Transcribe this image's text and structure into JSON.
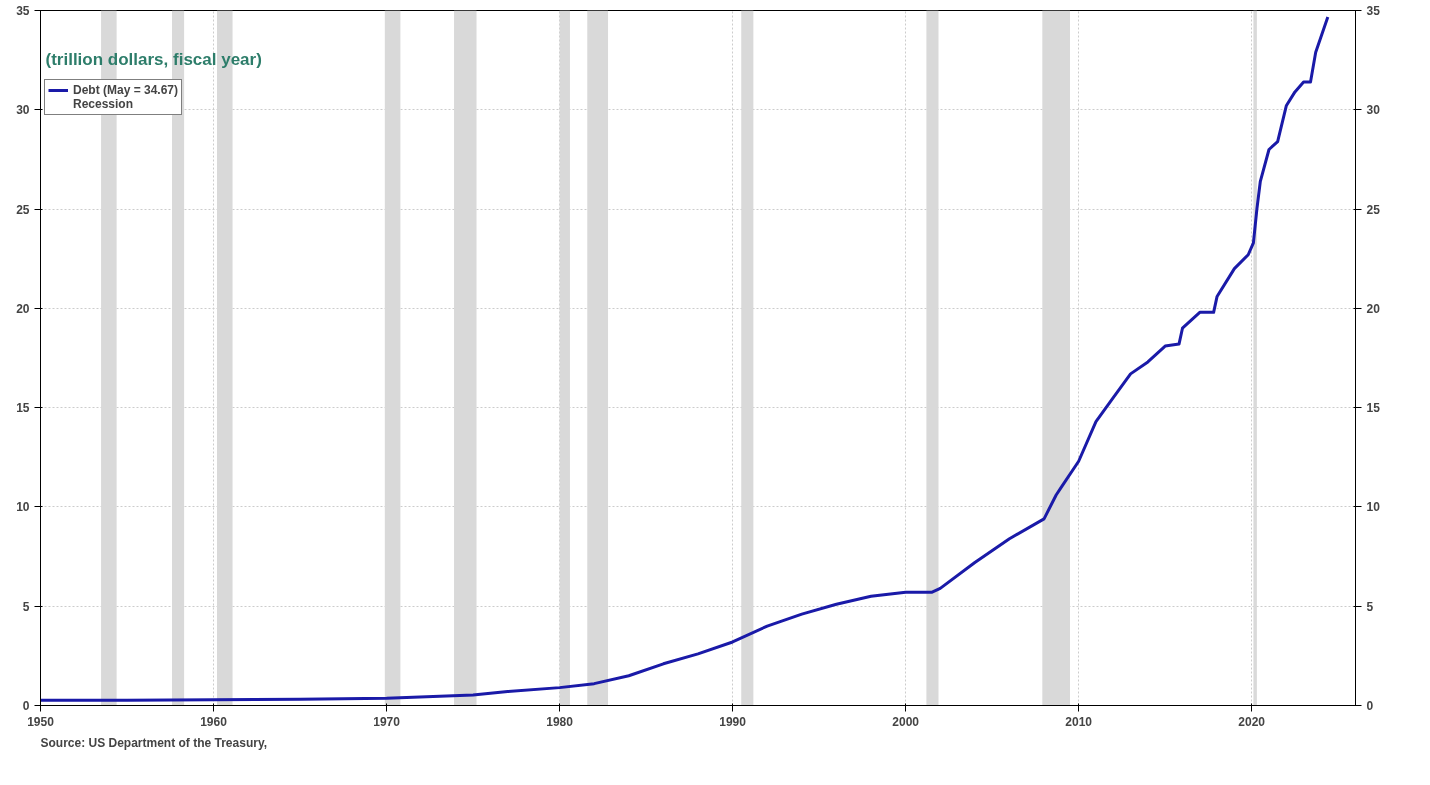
{
  "chart_data": {
    "type": "line",
    "title": "(trillion dollars, fiscal year)",
    "x": [
      1950,
      1955,
      1960,
      1965,
      1970,
      1975,
      1977,
      1980,
      1982,
      1984,
      1986,
      1988,
      1990,
      1992,
      1994,
      1996,
      1998,
      2000,
      2001.5,
      2002,
      2004,
      2006,
      2008,
      2008.7,
      2009,
      2010,
      2011,
      2012,
      2013,
      2014,
      2015,
      2015.8,
      2016,
      2017,
      2017.8,
      2018,
      2019,
      2019.8,
      2020.1,
      2020.3,
      2020.5,
      2021,
      2021.5,
      2022,
      2022.5,
      2023,
      2023.4,
      2023.7,
      2024.4
    ],
    "series": [
      {
        "name": "Debt (May = 34.67)",
        "color": "#1a1aa8",
        "values": [
          0.26,
          0.27,
          0.29,
          0.32,
          0.37,
          0.53,
          0.7,
          0.9,
          1.1,
          1.5,
          2.1,
          2.6,
          3.2,
          4.0,
          4.6,
          5.1,
          5.5,
          5.7,
          5.7,
          5.9,
          7.2,
          8.4,
          9.4,
          10.6,
          11.0,
          12.3,
          14.3,
          15.5,
          16.7,
          17.3,
          18.1,
          18.2,
          19.0,
          19.8,
          19.8,
          20.6,
          22.0,
          22.7,
          23.3,
          25.0,
          26.4,
          28.0,
          28.4,
          30.2,
          30.9,
          31.4,
          31.4,
          32.9,
          34.67
        ]
      }
    ],
    "xlim": [
      1950,
      2026
    ],
    "xticks": [
      1950,
      1960,
      1970,
      1980,
      1990,
      2000,
      2010,
      2020
    ],
    "ylim": [
      0,
      35
    ],
    "yticks": [
      0,
      5,
      10,
      15,
      20,
      25,
      30,
      35
    ],
    "y2lim": [
      0,
      35
    ],
    "y2ticks": [
      0,
      5,
      10,
      15,
      20,
      25,
      30,
      35
    ],
    "bands": [
      {
        "axis": "x",
        "from": 1953.5,
        "to": 1954.4,
        "label": "Recession",
        "color": "#d9d9d9"
      },
      {
        "axis": "x",
        "from": 1957.6,
        "to": 1958.3,
        "color": "#d9d9d9"
      },
      {
        "axis": "x",
        "from": 1960.2,
        "to": 1961.1,
        "color": "#d9d9d9"
      },
      {
        "axis": "x",
        "from": 1969.9,
        "to": 1970.8,
        "color": "#d9d9d9"
      },
      {
        "axis": "x",
        "from": 1973.9,
        "to": 1975.2,
        "color": "#d9d9d9"
      },
      {
        "axis": "x",
        "from": 1980.0,
        "to": 1980.6,
        "color": "#d9d9d9"
      },
      {
        "axis": "x",
        "from": 1981.6,
        "to": 1982.8,
        "color": "#d9d9d9"
      },
      {
        "axis": "x",
        "from": 1990.5,
        "to": 1991.2,
        "color": "#d9d9d9"
      },
      {
        "axis": "x",
        "from": 2001.2,
        "to": 2001.9,
        "color": "#d9d9d9"
      },
      {
        "axis": "x",
        "from": 2007.9,
        "to": 2009.5,
        "color": "#d9d9d9"
      },
      {
        "axis": "x",
        "from": 2020.1,
        "to": 2020.3,
        "color": "#d9d9d9"
      }
    ],
    "annotations": [
      "Source: US Department of the Treasury,"
    ],
    "grid": true,
    "legend": "top left",
    "marker": "none",
    "line_style": "solid"
  }
}
